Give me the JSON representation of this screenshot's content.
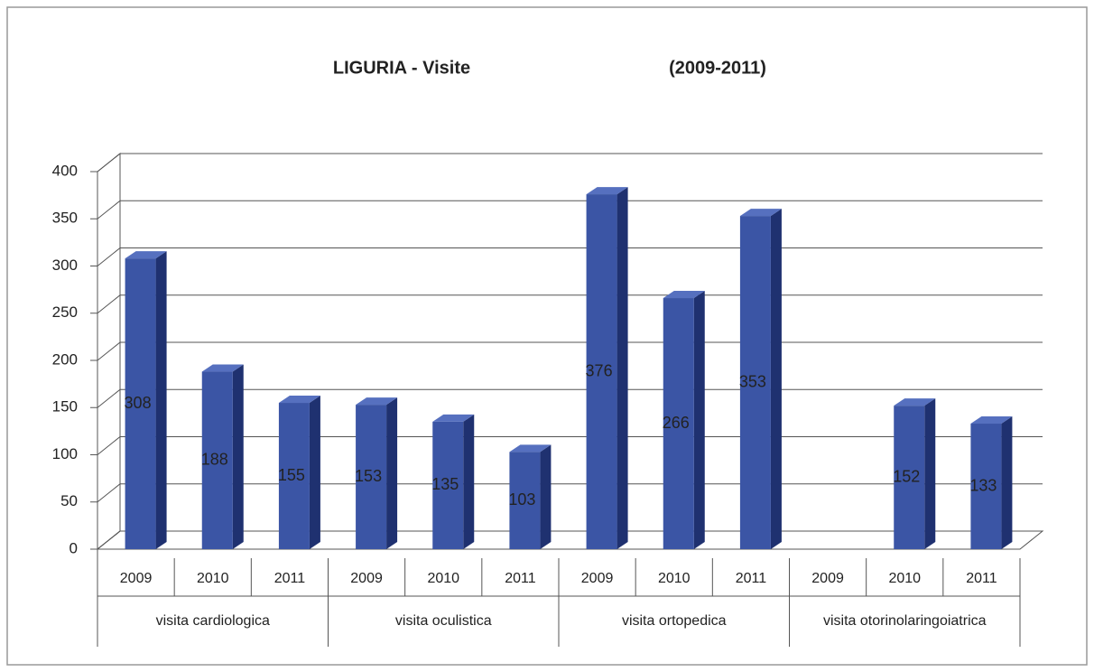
{
  "chart_data": {
    "type": "bar3d",
    "title": "LIGURIA - Visite",
    "subtitle": "(2009-2011)",
    "categories": [
      "2009",
      "2010",
      "2011",
      "2009",
      "2010",
      "2011",
      "2009",
      "2010",
      "2011",
      "2009",
      "2010",
      "2011"
    ],
    "groups": [
      "visita cardiologica",
      "visita oculistica",
      "visita ortopedica",
      "visita otorinolaringoiatrica"
    ],
    "values": [
      308,
      188,
      155,
      153,
      135,
      103,
      376,
      266,
      353,
      null,
      152,
      133
    ],
    "color": "#3b55a5",
    "ylim": [
      0,
      400
    ],
    "yticks": [
      0,
      50,
      100,
      150,
      200,
      250,
      300,
      350,
      400
    ],
    "grid": true
  }
}
